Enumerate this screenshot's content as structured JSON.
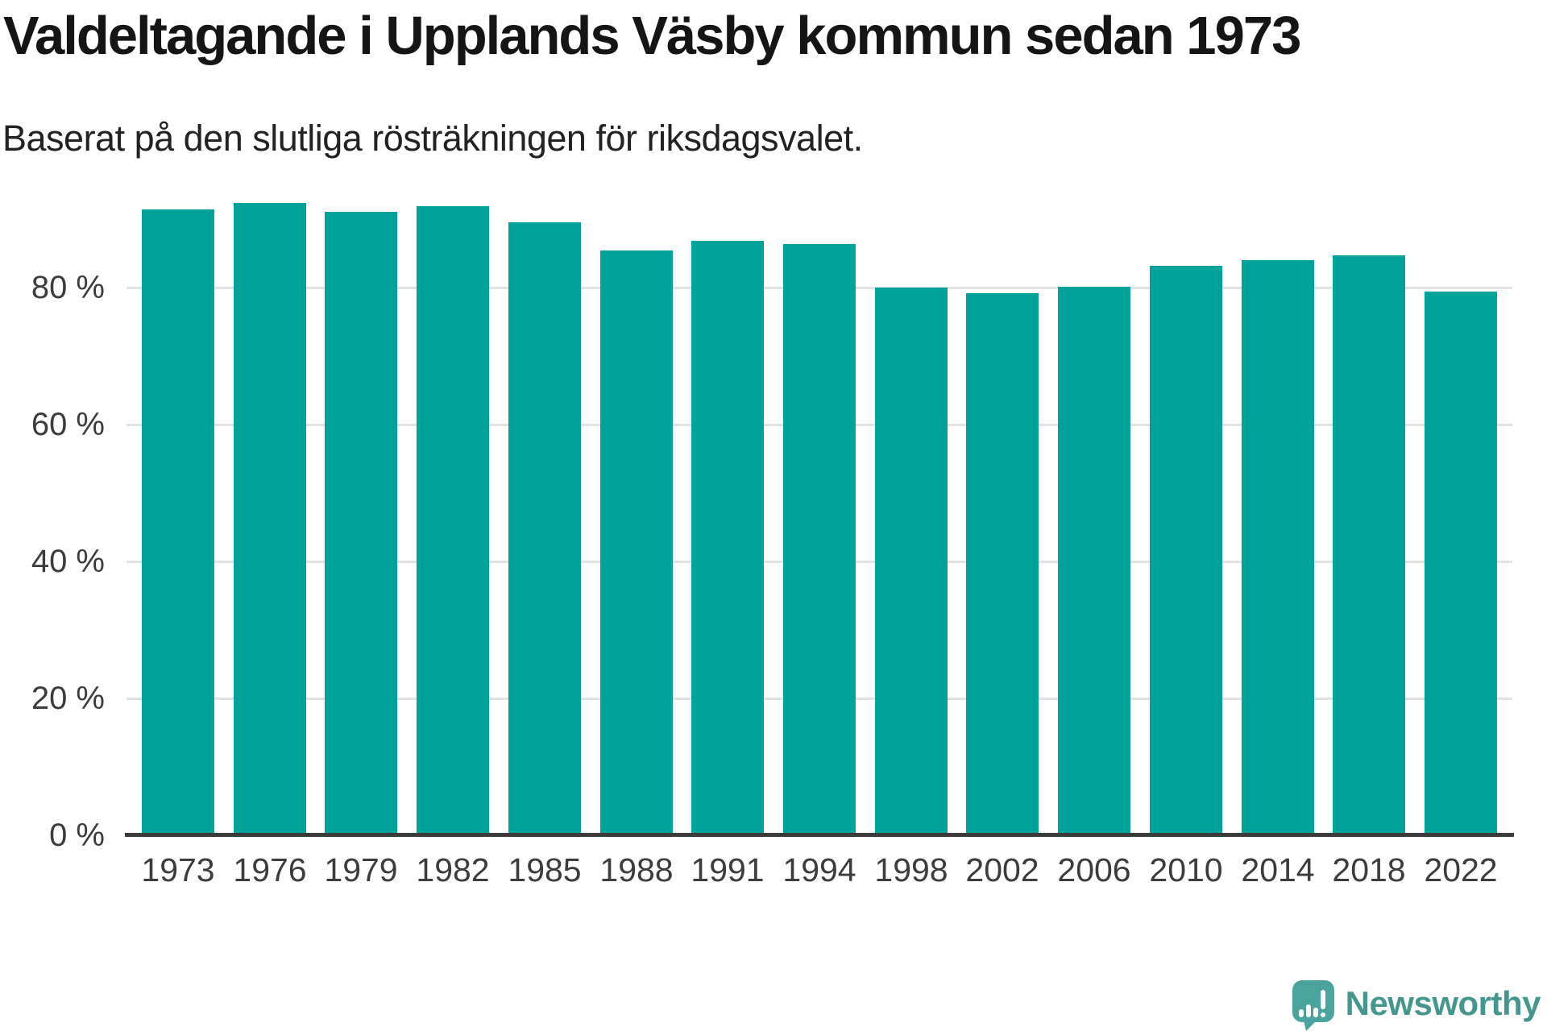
{
  "chart_data": {
    "type": "bar",
    "title": "Valdeltagande i Upplands Väsby kommun sedan 1973",
    "subtitle": "Baserat på den slutliga rösträkningen för riksdagsvalet.",
    "categories": [
      "1973",
      "1976",
      "1979",
      "1982",
      "1985",
      "1988",
      "1991",
      "1994",
      "1998",
      "2002",
      "2006",
      "2010",
      "2014",
      "2018",
      "2022"
    ],
    "values": [
      91.4,
      92.4,
      91.0,
      91.9,
      89.5,
      85.4,
      86.8,
      86.4,
      80.0,
      79.2,
      80.1,
      83.2,
      84.0,
      84.7,
      79.4
    ],
    "unit": "%",
    "xlabel": "",
    "ylabel": "",
    "ylim": [
      0,
      100
    ],
    "yticks": [
      {
        "value": 0,
        "label": "0 %"
      },
      {
        "value": 20,
        "label": "20 %"
      },
      {
        "value": 40,
        "label": "40 %"
      },
      {
        "value": 60,
        "label": "60 %"
      },
      {
        "value": 80,
        "label": "80 %"
      }
    ],
    "gridline_values": [
      20,
      40,
      60,
      80
    ],
    "grid": "horizontal",
    "legend": "none"
  },
  "colors": {
    "bar": "#00a29a",
    "grid": "#e2e2e2",
    "axis": "#3b3b3b",
    "tick_text": "#3c3c3c",
    "title_text": "#151515",
    "subtitle_text": "#222222",
    "logo_mark": "#4aa39c",
    "logo_text": "#45968f"
  },
  "footer": {
    "brand": "Newsworthy"
  }
}
